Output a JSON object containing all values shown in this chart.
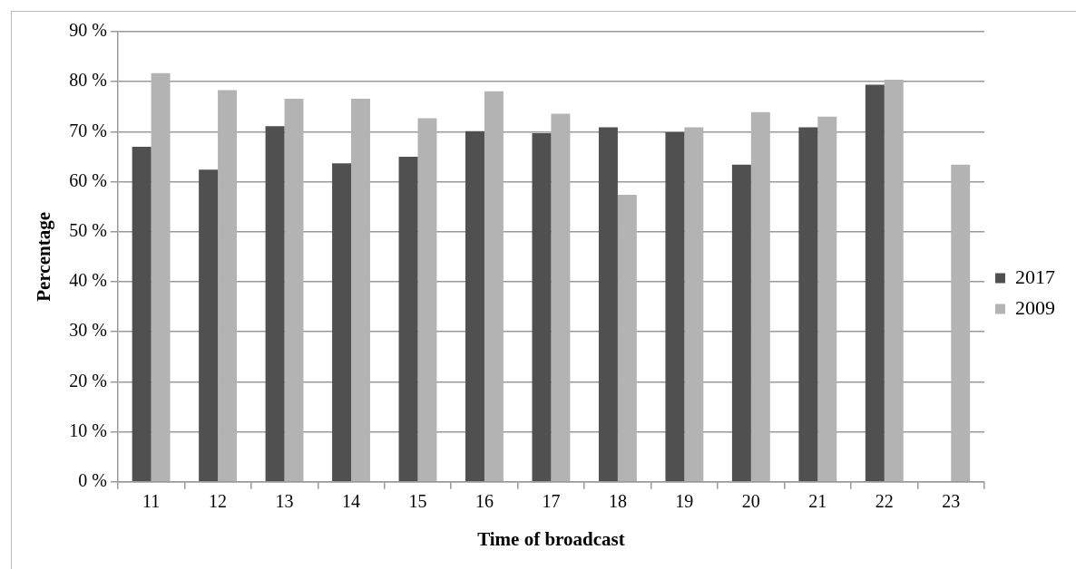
{
  "chart_data": {
    "type": "bar",
    "xlabel": "Time of broadcast",
    "ylabel": "Percentage",
    "categories": [
      "11",
      "12",
      "13",
      "14",
      "15",
      "16",
      "17",
      "18",
      "19",
      "20",
      "21",
      "22",
      "23"
    ],
    "series": [
      {
        "name": "2017",
        "color": "#505050",
        "values": [
          67.0,
          62.4,
          71.1,
          63.7,
          65.0,
          70.1,
          69.7,
          70.9,
          69.9,
          63.4,
          70.9,
          79.4,
          null
        ]
      },
      {
        "name": "2009",
        "color": "#b3b3b3",
        "values": [
          81.7,
          78.3,
          76.6,
          76.6,
          72.7,
          78.1,
          73.6,
          57.4,
          70.9,
          73.9,
          73.0,
          80.4,
          63.4
        ]
      }
    ],
    "ylim": [
      0,
      90
    ],
    "yticks": [
      {
        "value": 0,
        "label": "0 %"
      },
      {
        "value": 10,
        "label": "10 %"
      },
      {
        "value": 20,
        "label": "20 %"
      },
      {
        "value": 30,
        "label": "30 %"
      },
      {
        "value": 40,
        "label": "40 %"
      },
      {
        "value": 50,
        "label": "50 %"
      },
      {
        "value": 60,
        "label": "60 %"
      },
      {
        "value": 70,
        "label": "70 %"
      },
      {
        "value": 80,
        "label": "80 %"
      },
      {
        "value": 90,
        "label": "90 %"
      }
    ],
    "grid": "y",
    "legend": "right"
  }
}
